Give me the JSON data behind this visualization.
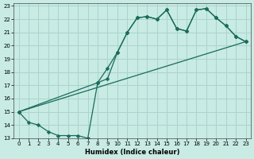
{
  "xlabel": "Humidex (Indice chaleur)",
  "xlim": [
    -0.5,
    23.5
  ],
  "ylim": [
    13,
    23.2
  ],
  "yticks": [
    13,
    14,
    15,
    16,
    17,
    18,
    19,
    20,
    21,
    22,
    23
  ],
  "xticks": [
    0,
    1,
    2,
    3,
    4,
    5,
    6,
    7,
    8,
    9,
    10,
    11,
    12,
    13,
    14,
    15,
    16,
    17,
    18,
    19,
    20,
    21,
    22,
    23
  ],
  "bg_color": "#c8ebe4",
  "grid_color": "#aad4cc",
  "line_color": "#1a6b5a",
  "series1_x": [
    0,
    1,
    2,
    3,
    4,
    5,
    6,
    7,
    8,
    9,
    10,
    11,
    12,
    13,
    14,
    15,
    16,
    17,
    18,
    19,
    20,
    21,
    22,
    23
  ],
  "series1_y": [
    15.0,
    14.2,
    14.0,
    13.5,
    13.2,
    13.2,
    13.2,
    13.0,
    17.2,
    18.3,
    19.5,
    21.0,
    22.1,
    22.2,
    22.0,
    22.7,
    21.3,
    21.1,
    22.7,
    22.8,
    22.1,
    21.5,
    20.7,
    20.3
  ],
  "series2_x": [
    0,
    8,
    9,
    10,
    11,
    12,
    13,
    14,
    15,
    16,
    17,
    18,
    19,
    20,
    21,
    22,
    23
  ],
  "series2_y": [
    15.0,
    17.2,
    17.5,
    19.5,
    21.0,
    22.1,
    22.2,
    22.0,
    22.7,
    21.3,
    21.1,
    22.7,
    22.8,
    22.1,
    21.5,
    20.7,
    20.3
  ],
  "series3_x": [
    0,
    23
  ],
  "series3_y": [
    15.0,
    20.3
  ]
}
